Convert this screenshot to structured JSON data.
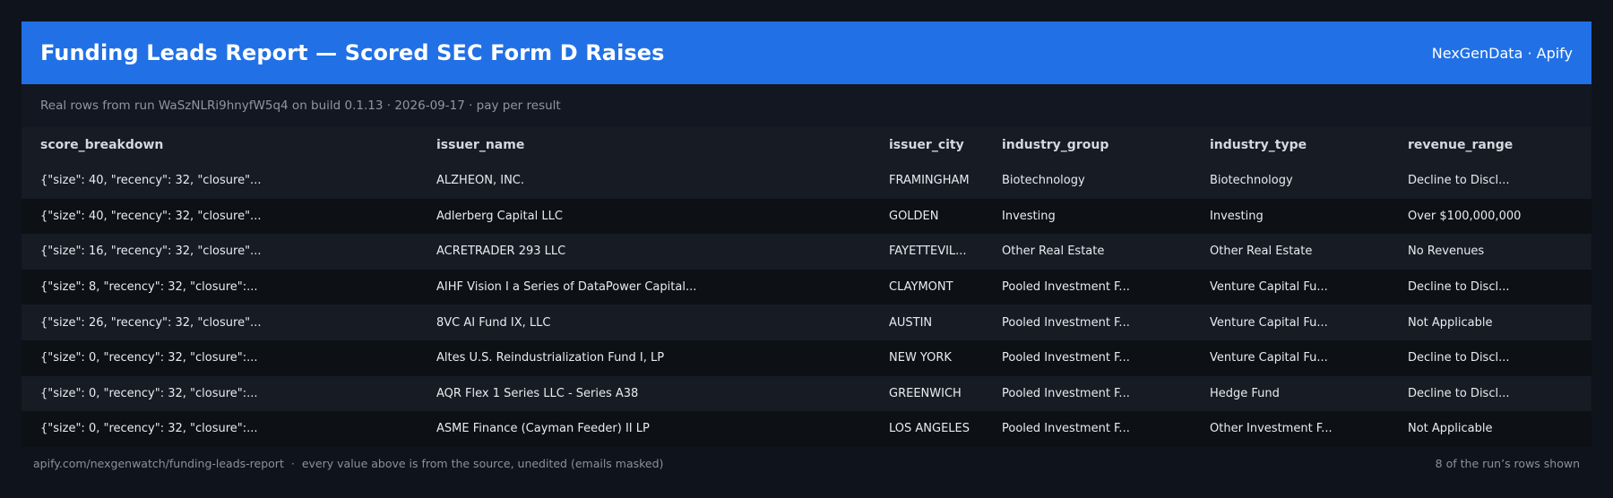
{
  "header": {
    "title": "Funding Leads Report — Scored SEC Form D Raises",
    "brand": "NexGenData · Apify"
  },
  "subtitle": "Real rows from run WaSzNLRi9hnyfW5q4 on build 0.1.13 · 2026-09-17 · pay per result",
  "table": {
    "columns": [
      "score_breakdown",
      "issuer_name",
      "issuer_city",
      "industry_group",
      "industry_type",
      "revenue_range"
    ],
    "rows": [
      [
        "{\"size\": 40, \"recency\": 32, \"closure\"...",
        "ALZHEON, INC.",
        "FRAMINGHAM",
        "Biotechnology",
        "Biotechnology",
        "Decline to Discl..."
      ],
      [
        "{\"size\": 40, \"recency\": 32, \"closure\"...",
        "Adlerberg Capital LLC",
        "GOLDEN",
        "Investing",
        "Investing",
        "Over $100,000,000"
      ],
      [
        "{\"size\": 16, \"recency\": 32, \"closure\"...",
        "ACRETRADER 293 LLC",
        "FAYETTEVIL...",
        "Other Real Estate",
        "Other Real Estate",
        "No Revenues"
      ],
      [
        "{\"size\": 8, \"recency\": 32, \"closure\":...",
        "AIHF Vision I a Series of DataPower Capital...",
        "CLAYMONT",
        "Pooled Investment F...",
        "Venture Capital Fu...",
        "Decline to Discl..."
      ],
      [
        "{\"size\": 26, \"recency\": 32, \"closure\"...",
        "8VC AI Fund IX, LLC",
        "AUSTIN",
        "Pooled Investment F...",
        "Venture Capital Fu...",
        "Not Applicable"
      ],
      [
        "{\"size\": 0, \"recency\": 32, \"closure\":...",
        "Altes U.S. Reindustrialization Fund I, LP",
        "NEW YORK",
        "Pooled Investment F...",
        "Venture Capital Fu...",
        "Decline to Discl..."
      ],
      [
        "{\"size\": 0, \"recency\": 32, \"closure\":...",
        "AQR Flex 1 Series LLC - Series A38",
        "GREENWICH",
        "Pooled Investment F...",
        "Hedge Fund",
        "Decline to Discl..."
      ],
      [
        "{\"size\": 0, \"recency\": 32, \"closure\":...",
        "ASME Finance (Cayman Feeder) II LP",
        "LOS ANGELES",
        "Pooled Investment F...",
        "Other Investment F...",
        "Not Applicable"
      ]
    ]
  },
  "footer": {
    "url": "apify.com/nexgenwatch/funding-leads-report",
    "separator": "·",
    "note": "every value above is from the source, unedited (emails masked)",
    "count": "8 of the run’s rows shown"
  }
}
